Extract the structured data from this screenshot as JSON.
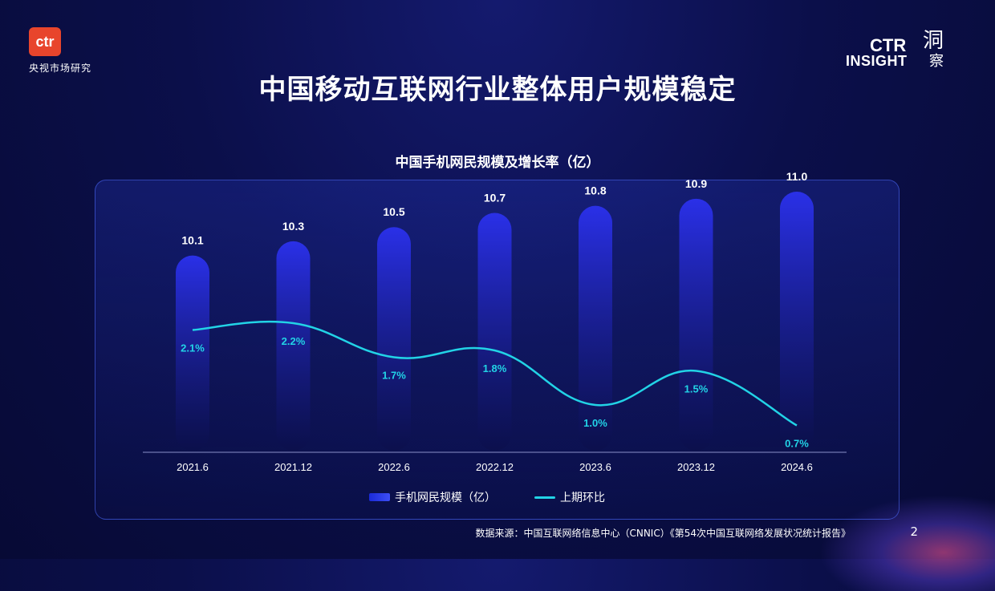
{
  "header": {
    "logo_text": "ctr",
    "logo_subtitle": "央视市场研究",
    "brand_ctr": "CTR",
    "brand_insight": "INSIGHT",
    "brand_cn_1": "洞",
    "brand_cn_2": "察"
  },
  "page_title": "中国移动互联网行业整体用户规模稳定",
  "footer": {
    "source": "数据来源：中国互联网络信息中心（CNNIC）《第54次中国互联网络发展状况统计报告》",
    "page_number": "2"
  },
  "colors": {
    "bar_top": "#2a30e8",
    "bar_bottom": "#0b0f4a",
    "line": "#22d3e6",
    "pct_label": "#22d3e6"
  },
  "chart_data": {
    "type": "bar",
    "title": "中国手机网民规模及增长率（亿）",
    "categories": [
      "2021.6",
      "2021.12",
      "2022.6",
      "2022.12",
      "2023.6",
      "2023.12",
      "2024.6"
    ],
    "series": [
      {
        "name": "手机网民规模（亿）",
        "type": "bar",
        "values": [
          10.1,
          10.3,
          10.5,
          10.7,
          10.8,
          10.9,
          11.0
        ],
        "labels": [
          "10.1",
          "10.3",
          "10.5",
          "10.7",
          "10.8",
          "10.9",
          "11.0"
        ]
      },
      {
        "name": "上期环比",
        "type": "line",
        "values": [
          2.1,
          2.2,
          1.7,
          1.8,
          1.0,
          1.5,
          0.7
        ],
        "labels": [
          "2.1%",
          "2.2%",
          "1.7%",
          "1.8%",
          "1.0%",
          "1.5%",
          "0.7%"
        ]
      }
    ],
    "legend": "bottom"
  }
}
